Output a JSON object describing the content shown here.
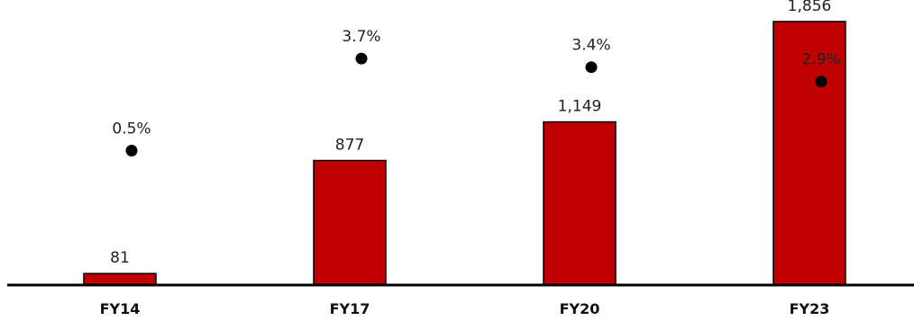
{
  "chart_data": {
    "type": "bar",
    "categories": [
      "FY14",
      "FY17",
      "FY20",
      "FY23"
    ],
    "series": [
      {
        "values": [
          81,
          877,
          1149,
          1856
        ],
        "labels": [
          "81",
          "877",
          "1,149",
          "1,856"
        ],
        "render": "bar"
      },
      {
        "values": [
          0.5,
          3.7,
          3.4,
          2.9
        ],
        "labels": [
          "0.5%",
          "3.7%",
          "3.4%",
          "2.9%"
        ],
        "render": "dot"
      }
    ],
    "title": "",
    "xlabel": "",
    "ylabel": "",
    "bar_ylim": [
      0,
      1900
    ],
    "dot_ylim": [
      0,
      4
    ],
    "grid": false,
    "legend": "none",
    "colors": {
      "bar_fill": "#c00000",
      "bar_stroke": "#000000",
      "dot": "#000000",
      "axis": "#000000"
    }
  }
}
